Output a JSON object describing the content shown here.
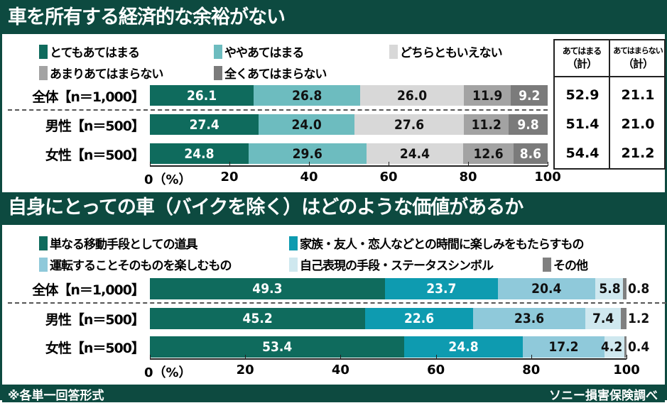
{
  "section1": {
    "title": "車を所有する経済的な余裕がない"
  },
  "section2": {
    "title": "自身にとっての車（バイクを除く）はどのような価値があるか"
  },
  "table": {
    "headers": [
      [
        "あてはまる",
        "（計）"
      ],
      [
        "あてはまらない",
        "（計）"
      ]
    ],
    "rows": [
      [
        "52.9",
        "21.1"
      ],
      [
        "51.4",
        "21.0"
      ],
      [
        "54.4",
        "21.2"
      ]
    ]
  },
  "footer": {
    "note": "※各単一回答形式",
    "source": "ソニー損害保険調べ"
  },
  "chart_data": [
    {
      "type": "bar",
      "stacked": true,
      "orientation": "horizontal",
      "title": "車を所有する経済的な余裕がない",
      "categories": [
        "全体【n＝1,000】",
        "男性【n＝500】",
        "女性【n＝500】"
      ],
      "series": [
        {
          "name": "とてもあてはまる",
          "color": "#0f6b5d",
          "text": "#fff",
          "values": [
            26.1,
            27.4,
            24.8
          ]
        },
        {
          "name": "ややあてはまる",
          "color": "#6dbcbf",
          "text": "#111",
          "values": [
            26.8,
            24.0,
            29.6
          ]
        },
        {
          "name": "どちらともいえない",
          "color": "#d8d8d8",
          "text": "#111",
          "values": [
            26.0,
            27.6,
            24.4
          ]
        },
        {
          "name": "あまりあてはまらない",
          "color": "#a3a3a3",
          "text": "#111",
          "values": [
            11.9,
            11.2,
            12.6
          ]
        },
        {
          "name": "全くあてはまらない",
          "color": "#7b7b7b",
          "text": "#fff",
          "values": [
            9.2,
            9.8,
            8.6
          ]
        }
      ],
      "xticks": [
        "0（%）",
        "20",
        "40",
        "60",
        "80",
        "100"
      ],
      "xlim": [
        0,
        100
      ]
    },
    {
      "type": "bar",
      "stacked": true,
      "orientation": "horizontal",
      "title": "自身にとっての車（バイクを除く）はどのような価値があるか",
      "categories": [
        "全体【n＝1,000】",
        "男性【n＝500】",
        "女性【n＝500】"
      ],
      "series": [
        {
          "name": "単なる移動手段としての道具",
          "color": "#0f6b5d",
          "text": "#fff",
          "values": [
            49.3,
            45.2,
            53.4
          ]
        },
        {
          "name": "家族・友人・恋人などとの時間に楽しみをもたらすもの",
          "color": "#0e9bb0",
          "text": "#fff",
          "values": [
            23.7,
            22.6,
            24.8
          ]
        },
        {
          "name": "運転することそのものを楽しむもの",
          "color": "#8fc9da",
          "text": "#111",
          "values": [
            20.4,
            23.6,
            17.2
          ]
        },
        {
          "name": "自己表現の手段・ステータスシンボル",
          "color": "#cfe8ef",
          "text": "#111",
          "values": [
            5.8,
            7.4,
            4.2
          ]
        },
        {
          "name": "その他",
          "color": "#808080",
          "text": "#111",
          "values": [
            0.8,
            1.2,
            0.4
          ]
        }
      ],
      "xticks": [
        "0（%）",
        "20",
        "40",
        "60",
        "80",
        "100"
      ],
      "xlim": [
        0,
        100
      ]
    }
  ]
}
